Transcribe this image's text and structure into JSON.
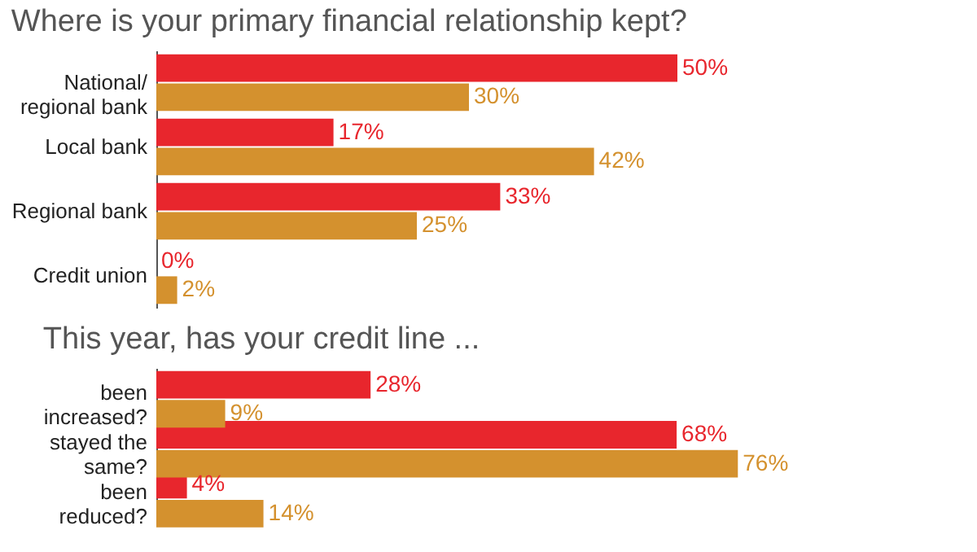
{
  "chart_data": [
    {
      "type": "bar",
      "orientation": "horizontal",
      "title": "Where is your primary financial relationship kept?",
      "categories": [
        "National/\nregional bank",
        "Local bank",
        "Regional bank",
        "Credit union"
      ],
      "series": [
        {
          "color": "#e8262d",
          "values": [
            50,
            17,
            33,
            0
          ],
          "value_labels": [
            "50%",
            "17%",
            "33%",
            "0%"
          ]
        },
        {
          "color": "#d4912e",
          "values": [
            30,
            42,
            25,
            2
          ],
          "value_labels": [
            "30%",
            "42%",
            "25%",
            "2%"
          ]
        }
      ]
    },
    {
      "type": "bar",
      "orientation": "horizontal",
      "title": "This year, has your credit line ...",
      "categories": [
        "been\nincreased?",
        "stayed the\nsame?",
        "been\nreduced?"
      ],
      "series": [
        {
          "color": "#e8262d",
          "values": [
            28,
            68,
            4
          ],
          "value_labels": [
            "28%",
            "68%",
            "4%"
          ]
        },
        {
          "color": "#d4912e",
          "values": [
            9,
            76,
            14
          ],
          "value_labels": [
            "9%",
            "76%",
            "14%"
          ]
        }
      ]
    }
  ]
}
